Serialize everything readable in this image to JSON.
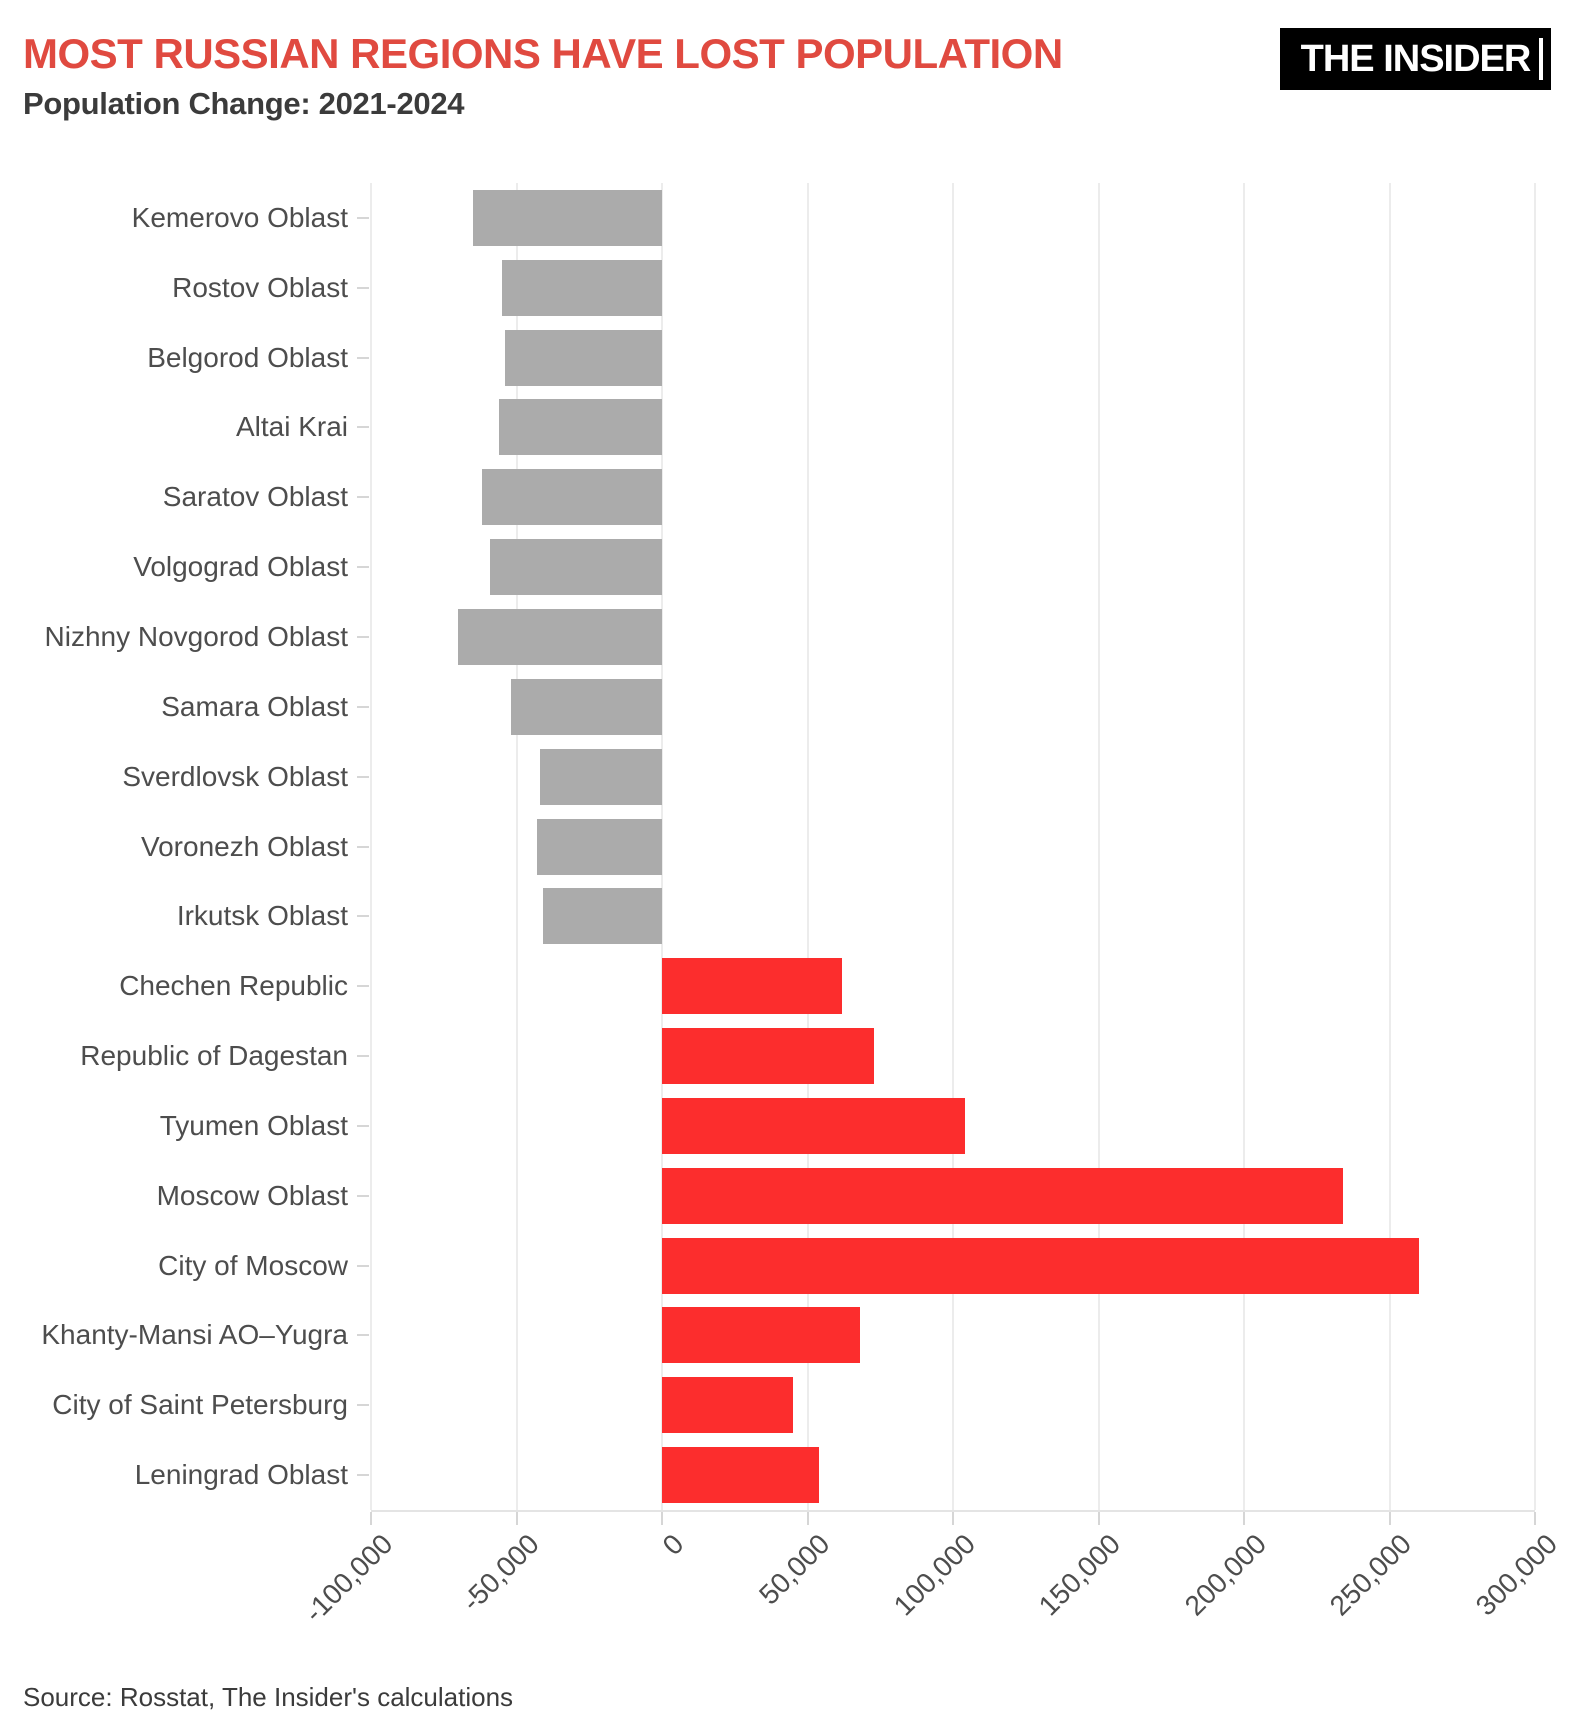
{
  "header": {
    "title": "MOST RUSSIAN REGIONS HAVE LOST POPULATION",
    "subtitle": "Population Change: 2021-2024",
    "logo_text": "THE INSIDER"
  },
  "footer": {
    "source": "Source: Rosstat, The Insider's calculations"
  },
  "colors": {
    "title": "#E04A40",
    "subtitle": "#3B3B3B",
    "source_text": "#3B3B3B",
    "axis_labels": "#4D4D4D",
    "gridline": "#ECECEC",
    "axis_line": "#E4E4E4",
    "tick_mark": "#D6D6D6",
    "negative_bar": "#ABABAB",
    "positive_bar": "#FC2D2D",
    "logo_bg": "#000000",
    "logo_text": "#FFFFFF",
    "background": "#FFFFFF"
  },
  "chart_data": {
    "type": "bar",
    "orientation": "horizontal",
    "title": "MOST RUSSIAN REGIONS HAVE LOST POPULATION",
    "subtitle": "Population Change: 2021-2024",
    "xlabel": "",
    "ylabel": "",
    "xlim": [
      -100000,
      300000
    ],
    "grid": "vertical",
    "legend": "none",
    "categories": [
      "Kemerovo Oblast",
      "Rostov Oblast",
      "Belgorod Oblast",
      "Altai Krai",
      "Saratov Oblast",
      "Volgograd Oblast",
      "Nizhny Novgorod Oblast",
      "Samara Oblast",
      "Sverdlovsk Oblast",
      "Voronezh Oblast",
      "Irkutsk Oblast",
      "Chechen Republic",
      "Republic of Dagestan",
      "Tyumen Oblast",
      "Moscow Oblast",
      "City of Moscow",
      "Khanty-Mansi AO–Yugra",
      "City of Saint Petersburg",
      "Leningrad Oblast"
    ],
    "values": [
      -65000,
      -55000,
      -54000,
      -56000,
      -62000,
      -59000,
      -70000,
      -52000,
      -42000,
      -43000,
      -41000,
      62000,
      73000,
      104000,
      234000,
      260000,
      68000,
      45000,
      54000
    ],
    "x_ticks": [
      -100000,
      -50000,
      0,
      50000,
      100000,
      150000,
      200000,
      250000,
      300000
    ],
    "x_tick_labels": [
      "-100,000",
      "-50,000",
      "0",
      "50,000",
      "100,000",
      "150,000",
      "200,000",
      "250,000",
      "300,000"
    ]
  }
}
